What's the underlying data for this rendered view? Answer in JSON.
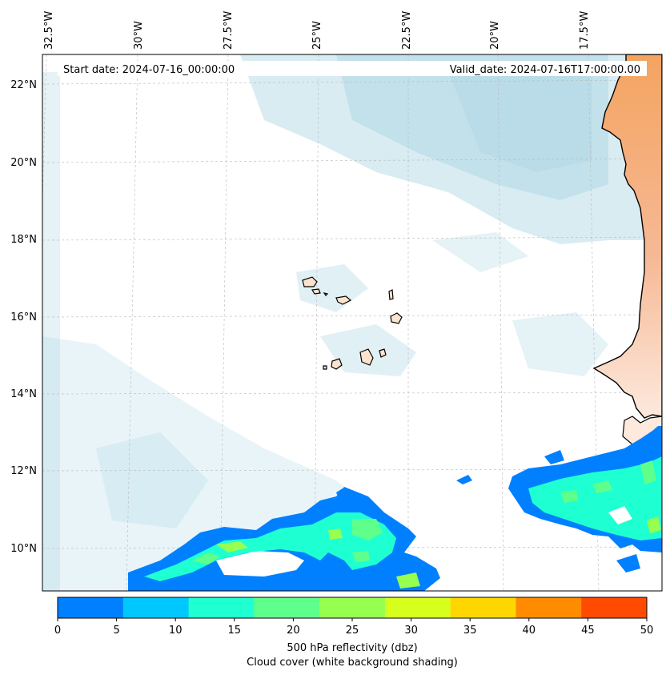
{
  "header": {
    "start_date": "Start date: 2024-07-16_00:00:00",
    "valid_date": "Valid_date: 2024-07-16T17:00:00.00"
  },
  "axes": {
    "longitude_labels": [
      "32.5°W",
      "30°W",
      "27.5°W",
      "25°W",
      "22.5°W",
      "20°W",
      "17.5°W"
    ],
    "latitude_labels": [
      "22°N",
      "20°N",
      "18°N",
      "16°N",
      "14°N",
      "12°N",
      "10°N"
    ]
  },
  "colorbar": {
    "ticks": [
      "0",
      "5",
      "10",
      "15",
      "20",
      "25",
      "30",
      "35",
      "40",
      "45",
      "50"
    ],
    "colors": [
      "#0080ff",
      "#00c8ff",
      "#1effd2",
      "#5fff8c",
      "#96ff50",
      "#d7ff1e",
      "#ffd700",
      "#ff8c00",
      "#ff4b00"
    ],
    "label": "500 hPa reflectivity (dbz)",
    "sublabel": "Cloud cover (white background shading)"
  },
  "colors": {
    "land": "#f4a460",
    "islands": "#fbe3cf",
    "cloud": "#a9d4e2",
    "coast": "#000000"
  }
}
